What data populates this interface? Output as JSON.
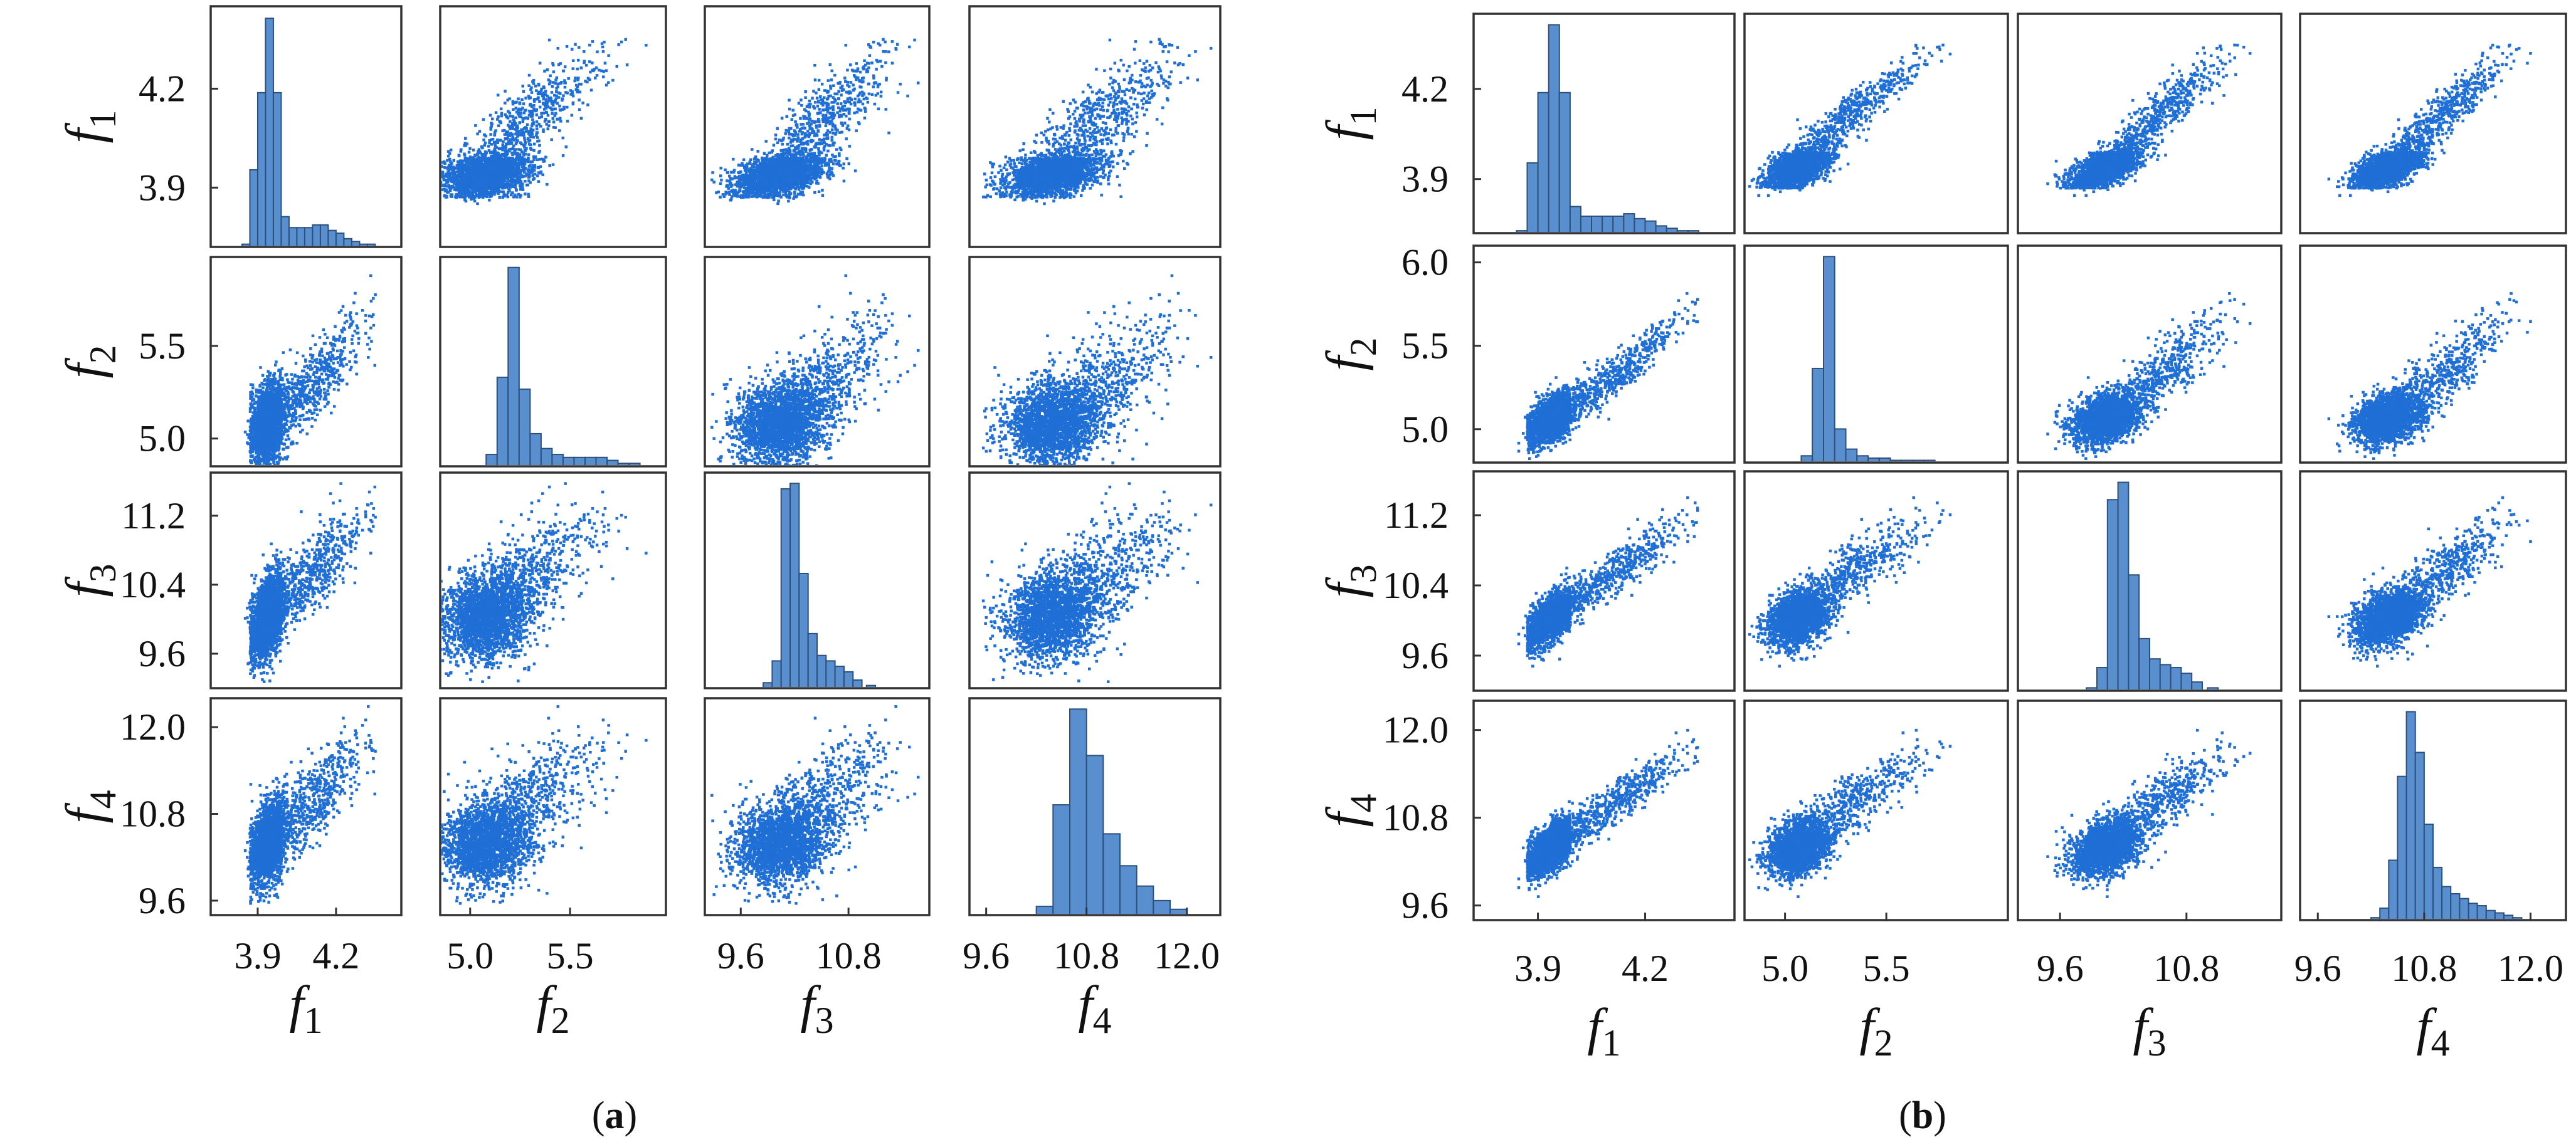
{
  "caption_a": "a",
  "caption_b": "b",
  "chart_data": [
    {
      "type": "scatter-matrix",
      "panel": "a",
      "variables": [
        "f1",
        "f2",
        "f3",
        "f4"
      ],
      "axis_labels": [
        "f1",
        "f2",
        "f3",
        "f4"
      ],
      "ranges": [
        [
          3.72,
          4.45
        ],
        [
          4.85,
          5.98
        ],
        [
          9.2,
          11.7
        ],
        [
          9.4,
          12.4
        ]
      ],
      "ticks": [
        [
          3.9,
          4.2
        ],
        [
          5.0,
          5.5
        ],
        [
          9.6,
          10.4,
          11.2
        ],
        [
          9.6,
          10.8,
          12.0
        ]
      ],
      "x_ticks": [
        [
          3.9,
          4.2
        ],
        [
          5.0,
          5.5
        ],
        [
          9.6,
          10.8
        ],
        [
          9.6,
          10.8,
          12.0
        ]
      ],
      "histograms": [
        {
          "bins": [
            3.84,
            3.87,
            3.9,
            3.93,
            3.96,
            3.99,
            4.02,
            4.05,
            4.08,
            4.11,
            4.14,
            4.17,
            4.2,
            4.23,
            4.26,
            4.29,
            4.32,
            4.35,
            4.38,
            4.41
          ],
          "counts": [
            1,
            28,
            56,
            83,
            56,
            11,
            7,
            7,
            7,
            8,
            8,
            6,
            5,
            3,
            2,
            1,
            1,
            0,
            0,
            0
          ]
        },
        {
          "bins": [
            5.08,
            5.135,
            5.19,
            5.245,
            5.3,
            5.355,
            5.41,
            5.465,
            5.52,
            5.575,
            5.63,
            5.685,
            5.74,
            5.795,
            5.85,
            5.905
          ],
          "counts": [
            4,
            30,
            67,
            26,
            11,
            6,
            4,
            3,
            3,
            3,
            3,
            2,
            1,
            1,
            0,
            0
          ]
        },
        {
          "bins": [
            9.85,
            9.95,
            10.05,
            10.15,
            10.25,
            10.35,
            10.45,
            10.55,
            10.65,
            10.75,
            10.85,
            11.0,
            11.1,
            11.2,
            11.3,
            11.4
          ],
          "counts": [
            2,
            10,
            73,
            75,
            42,
            20,
            12,
            10,
            8,
            6,
            3,
            1,
            0,
            0,
            0,
            0
          ]
        },
        {
          "bins": [
            10.2,
            10.4,
            10.6,
            10.8,
            11.0,
            11.2,
            11.4,
            11.6,
            11.8,
            12.0,
            12.2
          ],
          "counts": [
            3,
            38,
            71,
            55,
            28,
            17,
            10,
            5,
            2,
            0,
            0
          ]
        }
      ]
    },
    {
      "type": "scatter-matrix",
      "panel": "b",
      "variables": [
        "f1",
        "f2",
        "f3",
        "f4"
      ],
      "axis_labels": [
        "f1",
        "f2",
        "f3",
        "f4"
      ],
      "ranges": [
        [
          3.72,
          4.45
        ],
        [
          4.8,
          6.1
        ],
        [
          9.2,
          11.7
        ],
        [
          9.4,
          12.4
        ]
      ],
      "ticks": [
        [
          3.9,
          4.2
        ],
        [
          5.0,
          5.5,
          6.0
        ],
        [
          9.6,
          10.4,
          11.2
        ],
        [
          9.6,
          10.8,
          12.0
        ]
      ],
      "x_ticks": [
        [
          3.9,
          4.2
        ],
        [
          5.0,
          5.5
        ],
        [
          9.6,
          10.8
        ],
        [
          9.6,
          10.8,
          12.0
        ]
      ],
      "histograms": [
        {
          "bins": [
            3.84,
            3.87,
            3.9,
            3.93,
            3.96,
            3.99,
            4.02,
            4.05,
            4.08,
            4.11,
            4.14,
            4.17,
            4.2,
            4.23,
            4.26,
            4.29,
            4.32,
            4.35,
            4.38,
            4.41
          ],
          "counts": [
            1,
            29,
            58,
            86,
            58,
            11,
            7,
            7,
            7,
            7,
            8,
            6,
            5,
            3,
            2,
            1,
            1,
            0,
            0,
            0
          ]
        },
        {
          "bins": [
            5.08,
            5.135,
            5.19,
            5.245,
            5.3,
            5.355,
            5.41,
            5.465,
            5.52,
            5.575,
            5.63,
            5.685,
            5.74,
            5.795,
            5.85,
            5.905
          ],
          "counts": [
            3,
            42,
            92,
            15,
            6,
            3,
            2,
            2,
            1,
            1,
            1,
            1,
            0,
            0,
            0,
            0
          ]
        },
        {
          "bins": [
            9.85,
            9.95,
            10.05,
            10.15,
            10.25,
            10.35,
            10.45,
            10.55,
            10.65,
            10.75,
            10.85,
            11.0,
            11.1,
            11.2,
            11.3,
            11.4
          ],
          "counts": [
            1,
            8,
            66,
            72,
            40,
            18,
            11,
            9,
            8,
            6,
            3,
            1,
            0,
            0,
            0,
            0
          ]
        },
        {
          "bins": [
            10.2,
            10.3,
            10.4,
            10.5,
            10.6,
            10.7,
            10.8,
            10.9,
            11.0,
            11.1,
            11.2,
            11.3,
            11.4,
            11.5,
            11.6,
            11.7,
            11.8,
            11.9
          ],
          "counts": [
            1,
            5,
            25,
            60,
            87,
            70,
            40,
            22,
            14,
            11,
            9,
            7,
            6,
            4,
            3,
            2,
            1,
            0
          ]
        }
      ]
    }
  ]
}
